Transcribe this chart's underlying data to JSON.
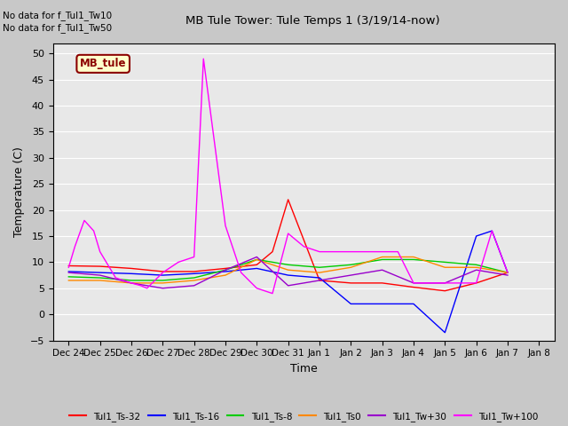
{
  "title": "MB Tule Tower: Tule Temps 1 (3/19/14-now)",
  "xlabel": "Time",
  "ylabel": "Temperature (C)",
  "ylim": [
    -5,
    52
  ],
  "yticks": [
    -5,
    0,
    5,
    10,
    15,
    20,
    25,
    30,
    35,
    40,
    45,
    50
  ],
  "fig_bg_color": "#c8c8c8",
  "plot_bg_color": "#e8e8e8",
  "no_data_text": [
    "No data for f_Tul1_Tw10",
    "No data for f_Tul1_Tw50"
  ],
  "legend_box_label": "MB_tule",
  "legend_box_color": "#ffffcc",
  "legend_box_border": "#8b0000",
  "series": [
    {
      "label": "Tul1_Ts-32",
      "color": "#ff0000",
      "x": [
        0,
        1,
        2,
        3,
        4,
        5,
        6,
        6.5,
        7,
        8,
        9,
        10,
        11,
        12,
        13,
        14
      ],
      "y": [
        9.3,
        9.2,
        8.8,
        8.2,
        8.2,
        8.8,
        9.5,
        12,
        22,
        6.5,
        6.0,
        6.0,
        5.2,
        4.5,
        6.0,
        8.0
      ]
    },
    {
      "label": "Tul1_Ts-16",
      "color": "#0000ff",
      "x": [
        0,
        1,
        2,
        3,
        4,
        5,
        6,
        7,
        8,
        9,
        10,
        10.5,
        11,
        12,
        13,
        13.5,
        14
      ],
      "y": [
        8.2,
        8.0,
        7.8,
        7.5,
        7.8,
        8.2,
        8.8,
        7.5,
        7.0,
        2.0,
        2.0,
        2.0,
        2.0,
        -3.5,
        15.0,
        16.0,
        8.0
      ]
    },
    {
      "label": "Tul1_Ts-8",
      "color": "#00cc00",
      "x": [
        0,
        1,
        2,
        3,
        4,
        5,
        6,
        7,
        8,
        9,
        10,
        11,
        12,
        13,
        14
      ],
      "y": [
        7.2,
        7.0,
        6.5,
        6.5,
        7.0,
        8.5,
        10.5,
        9.5,
        9.0,
        9.5,
        10.5,
        10.5,
        10.0,
        9.5,
        8.0
      ]
    },
    {
      "label": "Tul1_Ts0",
      "color": "#ff8800",
      "x": [
        0,
        1,
        2,
        3,
        4,
        5,
        6,
        7,
        8,
        9,
        10,
        11,
        12,
        13,
        14
      ],
      "y": [
        6.5,
        6.5,
        6.0,
        6.0,
        6.5,
        7.5,
        10.5,
        8.5,
        8.0,
        9.0,
        11.0,
        11.0,
        9.0,
        9.0,
        8.0
      ]
    },
    {
      "label": "Tul1_Tw+30",
      "color": "#9900cc",
      "x": [
        0,
        1,
        2,
        3,
        4,
        5,
        6,
        7,
        8,
        9,
        10,
        11,
        12,
        13,
        14
      ],
      "y": [
        8.0,
        7.5,
        6.0,
        5.0,
        5.5,
        8.5,
        11.0,
        5.5,
        6.5,
        7.5,
        8.5,
        6.0,
        6.0,
        8.5,
        7.5
      ]
    },
    {
      "label": "Tul1_Tw+100",
      "color": "#ff00ff",
      "x": [
        0,
        0.2,
        0.5,
        0.8,
        1,
        1.5,
        2,
        2.3,
        2.5,
        3,
        3.5,
        4,
        4.3,
        5,
        5.5,
        6,
        6.5,
        7,
        7.5,
        8,
        8.5,
        9,
        9.5,
        10,
        10.5,
        11,
        11.5,
        12,
        12.5,
        13,
        13.5,
        14
      ],
      "y": [
        9,
        13,
        18,
        16,
        12,
        7,
        6,
        5.5,
        5,
        8,
        10,
        11,
        49,
        17,
        8,
        5,
        4,
        15.5,
        13,
        12,
        12,
        12,
        12,
        12,
        12,
        6,
        6,
        6,
        6,
        6,
        16,
        8
      ]
    }
  ],
  "xtick_positions": [
    0,
    1,
    2,
    3,
    4,
    5,
    6,
    7,
    8,
    9,
    10,
    11,
    12,
    13,
    14,
    15
  ],
  "xtick_labels": [
    "Dec 24",
    "Dec 25",
    "Dec 26",
    "Dec 27",
    "Dec 28",
    "Dec 29",
    "Dec 30",
    "Dec 31",
    "Jan 1",
    "Jan 2",
    "Jan 3",
    "Jan 4",
    "Jan 5",
    "Jan 6",
    "Jan 7",
    "Jan 8"
  ]
}
